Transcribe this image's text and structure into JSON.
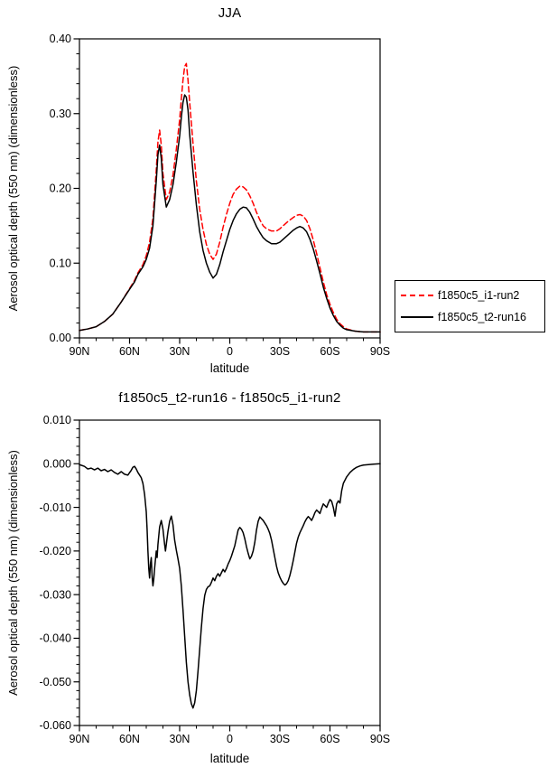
{
  "page": {
    "background": "#ffffff"
  },
  "chart_data": [
    {
      "type": "line",
      "title": "JJA",
      "xlabel": "latitude",
      "ylabel": "Aerosol optical depth (550 nm) (dimensionless)",
      "xlim": [
        90,
        -90
      ],
      "ylim": [
        0.0,
        0.4
      ],
      "grid": false,
      "xticks": {
        "values": [
          90,
          60,
          30,
          0,
          -30,
          -60,
          -90
        ],
        "labels": [
          "90N",
          "60N",
          "30N",
          "0",
          "30S",
          "60S",
          "90S"
        ],
        "minor_step": 10
      },
      "yticks": {
        "values": [
          0.0,
          0.1,
          0.2,
          0.3,
          0.4
        ],
        "labels": [
          "0.00",
          "0.10",
          "0.20",
          "0.30",
          "0.40"
        ],
        "minor_step": 0.02
      },
      "legend": {
        "position": "outside-right",
        "entries": [
          "f1850c5_i1-run2",
          "f1850c5_t2-run16"
        ]
      },
      "series": [
        {
          "name": "f1850c5_i1-run2",
          "color": "#ff0000",
          "style": "dashed",
          "x": [
            90,
            85,
            80,
            75,
            70,
            65,
            60,
            57,
            55,
            52,
            50,
            48,
            46,
            44,
            43,
            42,
            41,
            40,
            38,
            36,
            34,
            32,
            30,
            29,
            28,
            27,
            26,
            25,
            24,
            22,
            20,
            18,
            16,
            14,
            12,
            10,
            8,
            6,
            4,
            2,
            0,
            -2,
            -4,
            -6,
            -8,
            -10,
            -12,
            -14,
            -16,
            -18,
            -20,
            -22,
            -25,
            -28,
            -30,
            -32,
            -35,
            -38,
            -40,
            -42,
            -44,
            -46,
            -48,
            -50,
            -52,
            -54,
            -56,
            -58,
            -60,
            -62,
            -64,
            -66,
            -68,
            -70,
            -75,
            -80,
            -85,
            -90
          ],
          "y": [
            0.01,
            0.012,
            0.015,
            0.022,
            0.032,
            0.048,
            0.066,
            0.077,
            0.087,
            0.098,
            0.11,
            0.128,
            0.16,
            0.225,
            0.262,
            0.278,
            0.258,
            0.22,
            0.185,
            0.195,
            0.218,
            0.252,
            0.292,
            0.32,
            0.345,
            0.363,
            0.367,
            0.345,
            0.315,
            0.26,
            0.21,
            0.172,
            0.145,
            0.125,
            0.112,
            0.105,
            0.112,
            0.128,
            0.148,
            0.165,
            0.18,
            0.192,
            0.199,
            0.203,
            0.202,
            0.198,
            0.19,
            0.18,
            0.168,
            0.158,
            0.15,
            0.146,
            0.143,
            0.143,
            0.146,
            0.15,
            0.156,
            0.161,
            0.164,
            0.165,
            0.163,
            0.157,
            0.146,
            0.131,
            0.113,
            0.094,
            0.075,
            0.058,
            0.045,
            0.034,
            0.025,
            0.019,
            0.015,
            0.012,
            0.009,
            0.008,
            0.008,
            0.008
          ]
        },
        {
          "name": "f1850c5_t2-run16",
          "color": "#000000",
          "style": "solid",
          "x": [
            90,
            85,
            80,
            75,
            70,
            65,
            60,
            57,
            55,
            52,
            50,
            48,
            46,
            44,
            43,
            42,
            41,
            40,
            38,
            36,
            34,
            32,
            30,
            29,
            28,
            27,
            26,
            25,
            24,
            22,
            20,
            18,
            16,
            14,
            12,
            10,
            8,
            6,
            4,
            2,
            0,
            -2,
            -4,
            -6,
            -8,
            -10,
            -12,
            -14,
            -16,
            -18,
            -20,
            -22,
            -25,
            -28,
            -30,
            -32,
            -35,
            -38,
            -40,
            -42,
            -44,
            -46,
            -48,
            -50,
            -52,
            -54,
            -56,
            -58,
            -60,
            -62,
            -64,
            -66,
            -68,
            -70,
            -75,
            -80,
            -85,
            -90
          ],
          "y": [
            0.01,
            0.012,
            0.015,
            0.022,
            0.032,
            0.048,
            0.065,
            0.075,
            0.085,
            0.095,
            0.105,
            0.12,
            0.15,
            0.21,
            0.245,
            0.258,
            0.24,
            0.205,
            0.175,
            0.185,
            0.205,
            0.235,
            0.27,
            0.295,
            0.315,
            0.325,
            0.322,
            0.305,
            0.272,
            0.222,
            0.178,
            0.142,
            0.117,
            0.1,
            0.088,
            0.08,
            0.085,
            0.098,
            0.115,
            0.13,
            0.145,
            0.157,
            0.166,
            0.172,
            0.175,
            0.174,
            0.168,
            0.159,
            0.149,
            0.141,
            0.134,
            0.13,
            0.126,
            0.126,
            0.128,
            0.132,
            0.138,
            0.144,
            0.147,
            0.149,
            0.147,
            0.142,
            0.132,
            0.119,
            0.103,
            0.086,
            0.068,
            0.053,
            0.04,
            0.03,
            0.022,
            0.017,
            0.013,
            0.011,
            0.009,
            0.008,
            0.008,
            0.008
          ]
        }
      ]
    },
    {
      "type": "line",
      "title": "f1850c5_t2-run16 - f1850c5_i1-run2",
      "xlabel": "latitude",
      "ylabel": "Aerosol optical depth (550 nm) (dimensionless)",
      "xlim": [
        90,
        -90
      ],
      "ylim": [
        -0.06,
        0.01
      ],
      "grid": false,
      "xticks": {
        "values": [
          90,
          60,
          30,
          0,
          -30,
          -60,
          -90
        ],
        "labels": [
          "90N",
          "60N",
          "30N",
          "0",
          "30S",
          "60S",
          "90S"
        ],
        "minor_step": 10
      },
      "yticks": {
        "values": [
          0.01,
          0.0,
          -0.01,
          -0.02,
          -0.03,
          -0.04,
          -0.05,
          -0.06
        ],
        "labels": [
          "0.010",
          "0.000",
          "-0.010",
          "-0.020",
          "-0.030",
          "-0.040",
          "-0.050",
          "-0.060"
        ],
        "minor_step": 0.002
      },
      "legend": {
        "position": "none",
        "entries": []
      },
      "series": [
        {
          "name": "f1850c5_t2-run16 - f1850c5_i1-run2",
          "color": "#000000",
          "style": "solid",
          "x": [
            90,
            87,
            85,
            83,
            81,
            79,
            77,
            75,
            73,
            71,
            69,
            67,
            65,
            63,
            61,
            59,
            58,
            57,
            56,
            55,
            54,
            53,
            52,
            51,
            50,
            49.5,
            49,
            48.5,
            48,
            47.5,
            47,
            46.5,
            46,
            45.5,
            45,
            44,
            43.5,
            43,
            42,
            41,
            40,
            39,
            38.5,
            38,
            37,
            36,
            35,
            34,
            33,
            32,
            31,
            30,
            29,
            28,
            27,
            26,
            25,
            24,
            23,
            22,
            21,
            20,
            19,
            18,
            17,
            16,
            15,
            14,
            13,
            12,
            11,
            10,
            9,
            8,
            7,
            6,
            5,
            4,
            3,
            2,
            1,
            0,
            -1,
            -2,
            -3,
            -4,
            -5,
            -6,
            -7,
            -8,
            -9,
            -10,
            -11,
            -12,
            -13,
            -14,
            -15,
            -16,
            -17,
            -18,
            -19,
            -20,
            -21,
            -22,
            -23,
            -24,
            -25,
            -26,
            -27,
            -28,
            -29,
            -30,
            -31,
            -32,
            -33,
            -34,
            -35,
            -36,
            -37,
            -38,
            -39,
            -40,
            -41,
            -42,
            -43,
            -44,
            -45,
            -46,
            -47,
            -48,
            -49,
            -50,
            -51,
            -52,
            -53,
            -54,
            -55,
            -56,
            -57,
            -58,
            -59,
            -60,
            -61,
            -62,
            -63,
            -64,
            -65,
            -66,
            -67,
            -68,
            -70,
            -72,
            -74,
            -76,
            -78,
            -80,
            -83,
            -86,
            -90
          ],
          "y": [
            -0.0002,
            -0.0006,
            -0.0012,
            -0.001,
            -0.0014,
            -0.001,
            -0.0016,
            -0.0013,
            -0.0018,
            -0.0014,
            -0.002,
            -0.0024,
            -0.0018,
            -0.0024,
            -0.0026,
            -0.0015,
            -0.0008,
            -0.0006,
            -0.0012,
            -0.002,
            -0.0026,
            -0.0032,
            -0.0045,
            -0.007,
            -0.011,
            -0.015,
            -0.02,
            -0.024,
            -0.0262,
            -0.023,
            -0.0215,
            -0.0258,
            -0.028,
            -0.0265,
            -0.024,
            -0.02,
            -0.0215,
            -0.0185,
            -0.0145,
            -0.013,
            -0.015,
            -0.0185,
            -0.02,
            -0.0185,
            -0.0155,
            -0.0132,
            -0.012,
            -0.014,
            -0.0175,
            -0.0198,
            -0.0218,
            -0.024,
            -0.028,
            -0.0335,
            -0.0395,
            -0.0455,
            -0.05,
            -0.053,
            -0.055,
            -0.056,
            -0.0548,
            -0.052,
            -0.0475,
            -0.0425,
            -0.0375,
            -0.0332,
            -0.0302,
            -0.0288,
            -0.0282,
            -0.028,
            -0.0272,
            -0.0262,
            -0.0268,
            -0.0258,
            -0.0252,
            -0.0258,
            -0.025,
            -0.0242,
            -0.0248,
            -0.024,
            -0.023,
            -0.0222,
            -0.0212,
            -0.02,
            -0.0188,
            -0.017,
            -0.0152,
            -0.0146,
            -0.015,
            -0.0158,
            -0.0172,
            -0.019,
            -0.0205,
            -0.0218,
            -0.0212,
            -0.02,
            -0.018,
            -0.0152,
            -0.0132,
            -0.0122,
            -0.0126,
            -0.013,
            -0.0136,
            -0.0142,
            -0.015,
            -0.016,
            -0.0175,
            -0.0195,
            -0.0215,
            -0.0235,
            -0.025,
            -0.026,
            -0.0268,
            -0.0274,
            -0.0278,
            -0.0275,
            -0.0268,
            -0.0256,
            -0.024,
            -0.0222,
            -0.0202,
            -0.0182,
            -0.0168,
            -0.0158,
            -0.015,
            -0.0142,
            -0.0133,
            -0.0126,
            -0.0121,
            -0.0125,
            -0.013,
            -0.0122,
            -0.0112,
            -0.0106,
            -0.011,
            -0.0114,
            -0.0102,
            -0.0092,
            -0.0096,
            -0.01,
            -0.009,
            -0.0082,
            -0.0086,
            -0.01,
            -0.012,
            -0.0092,
            -0.0085,
            -0.009,
            -0.0062,
            -0.0045,
            -0.003,
            -0.002,
            -0.0013,
            -0.0008,
            -0.0005,
            -0.0003,
            -0.0002,
            -0.0001,
            0.0
          ]
        }
      ]
    }
  ]
}
